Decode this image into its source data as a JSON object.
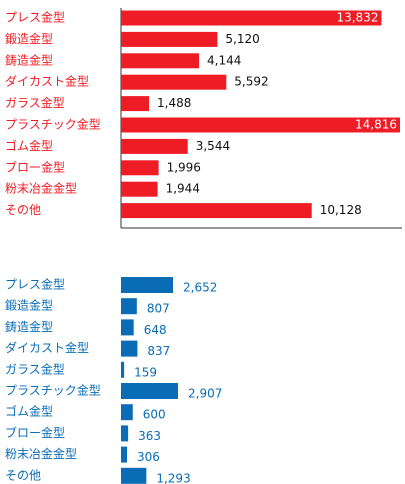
{
  "chart_data": [
    {
      "type": "bar",
      "orientation": "horizontal",
      "color": "#ee1c25",
      "label_color": "#ee1c25",
      "categories": [
        "プレス金型",
        "鍛造金型",
        "鋳造金型",
        "ダイカスト金型",
        "ガラス金型",
        "プラスチック金型",
        "ゴム金型",
        "ブロー金型",
        "粉末冶金金型",
        "その他"
      ],
      "values": [
        13832,
        5120,
        4144,
        5592,
        1488,
        14816,
        3544,
        1996,
        1944,
        10128
      ],
      "value_labels": [
        "13,832",
        "5,120",
        "4,144",
        "5,592",
        "1,488",
        "14,816",
        "3,544",
        "1,996",
        "1,944",
        "10,128"
      ]
    },
    {
      "type": "bar",
      "orientation": "horizontal",
      "color": "#0a6cb5",
      "label_color": "#0a6cb5",
      "categories": [
        "プレス金型",
        "鍛造金型",
        "鋳造金型",
        "ダイカスト金型",
        "ガラス金型",
        "プラスチック金型",
        "ゴム金型",
        "ブロー金型",
        "粉末冶金金型",
        "その他"
      ],
      "values": [
        2652,
        807,
        648,
        837,
        159,
        2907,
        600,
        363,
        306,
        1293
      ],
      "value_labels": [
        "2,652",
        "807",
        "648",
        "837",
        "159",
        "2,907",
        "600",
        "363",
        "306",
        "1,293"
      ]
    }
  ]
}
